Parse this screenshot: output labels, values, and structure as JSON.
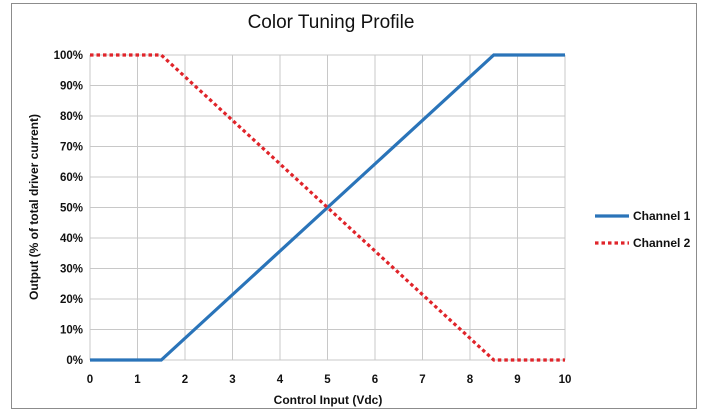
{
  "chart_data": {
    "type": "line",
    "title": "Color Tuning Profile",
    "xlabel": "Control Input (Vdc)",
    "ylabel": "Output (% of total driver current)",
    "xlim": [
      0,
      10
    ],
    "ylim": [
      0,
      100
    ],
    "x_ticks": [
      "0",
      "1",
      "2",
      "3",
      "4",
      "5",
      "6",
      "7",
      "8",
      "9",
      "10"
    ],
    "y_ticks": [
      "0%",
      "10%",
      "20%",
      "30%",
      "40%",
      "50%",
      "60%",
      "70%",
      "80%",
      "90%",
      "100%"
    ],
    "grid": true,
    "legend_position": "right",
    "series": [
      {
        "name": "Channel 1",
        "color": "#2a74b9",
        "style": "solid",
        "x": [
          0,
          1.5,
          8.5,
          10
        ],
        "y": [
          0,
          0,
          100,
          100
        ]
      },
      {
        "name": "Channel 2",
        "color": "#e0242a",
        "style": "dotted",
        "x": [
          0,
          1.5,
          8.5,
          10
        ],
        "y": [
          100,
          100,
          0,
          0
        ]
      }
    ]
  }
}
